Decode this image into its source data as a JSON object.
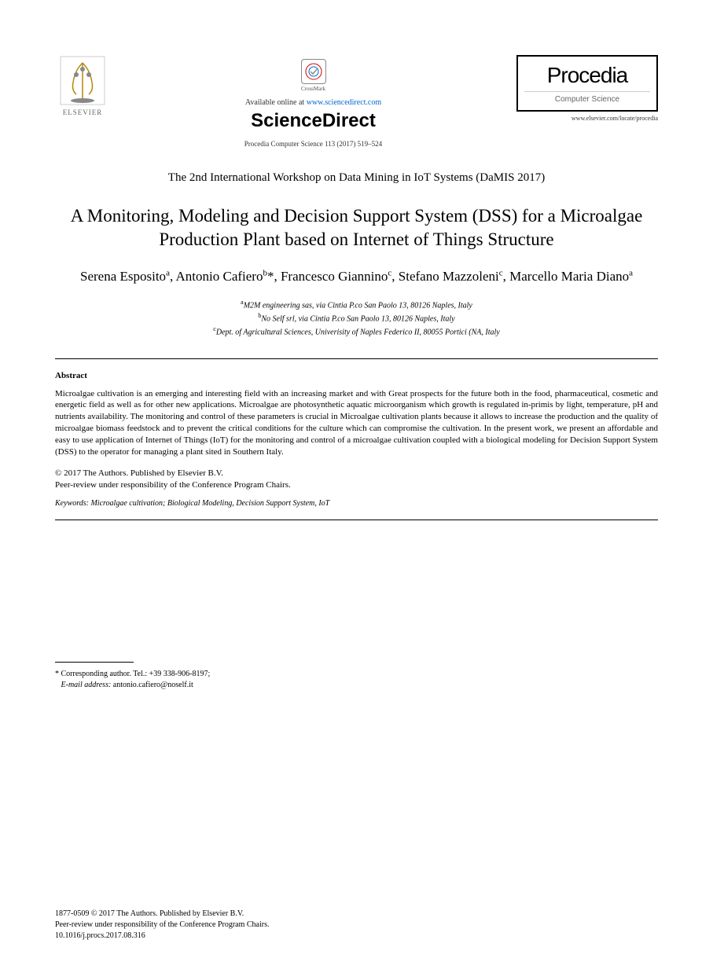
{
  "header": {
    "elsevier_label": "ELSEVIER",
    "crossmark_label": "CrossMark",
    "available_prefix": "Available online at ",
    "available_url": "www.sciencedirect.com",
    "sciencedirect": "ScienceDirect",
    "citation": "Procedia Computer Science 113 (2017) 519–524",
    "procedia_title": "Procedia",
    "procedia_sub": "Computer Science",
    "procedia_url": "www.elsevier.com/locate/procedia"
  },
  "conference": "The 2nd International Workshop on Data Mining in IoT Systems (DaMIS 2017)",
  "title": "A Monitoring, Modeling and Decision Support System (DSS) for a Microalgae Production Plant based on Internet of Things Structure",
  "authors_html": "Serena Esposito<sup>a</sup>, Antonio Cafiero<sup>b</sup>*, Francesco Giannino<sup>c</sup>, Stefano Mazzoleni<sup>c</sup>, Marcello Maria Diano<sup>a</sup>",
  "affiliations": [
    {
      "sup": "a",
      "text": "M2M engineering sas, via Cintia P.co San Paolo 13, 80126 Naples, Italy"
    },
    {
      "sup": "b",
      "text": "No Self srl, via Cintia P.co San Paolo 13, 80126 Naples, Italy"
    },
    {
      "sup": "c",
      "text": "Dept. of Agricultural Sciences, Univerisity of Naples Federico II, 80055 Portici (NA, Italy"
    }
  ],
  "abstract": {
    "heading": "Abstract",
    "body": "Microalgae cultivation is an emerging and interesting field with an increasing market and with Great prospects for the future both in the food, pharmaceutical, cosmetic and energetic field as well as for other new applications. Microalgae are photosynthetic aquatic microorganism which growth is regulated in-primis by light, temperature, pH and nutrients availability. The monitoring and control of these parameters is crucial in Microalgae cultivation plants because it allows to increase the production and the quality of microalgae biomass feedstock and to prevent the critical conditions for the culture which can compromise the cultivation. In the present work, we present an affordable and easy to use application of Internet of Things (IoT) for the monitoring and control of a microalgae cultivation coupled with a biological modeling for Decision Support System (DSS) to the operator for managing a plant sited in Southern Italy."
  },
  "copyright": {
    "line1": "© 2017 The Authors. Published by Elsevier B.V.",
    "line2": "Peer-review under responsibility of the Conference Program Chairs."
  },
  "keywords": {
    "label": "Keywords:",
    "text": " Microalgae cultivation; Biological Modeling, Decision Support System, IoT"
  },
  "footnote": {
    "corr": "* Corresponding author. Tel.: +39 338-906-8197;",
    "email_label": "E-mail address:",
    "email": " antonio.cafiero@noself.it"
  },
  "footer": {
    "issn": "1877-0509 © 2017 The Authors. Published by Elsevier B.V.",
    "peer": "Peer-review under responsibility of the Conference Program Chairs.",
    "doi": "10.1016/j.procs.2017.08.316"
  },
  "colors": {
    "link": "#0066cc",
    "text": "#000000",
    "muted": "#666666"
  }
}
